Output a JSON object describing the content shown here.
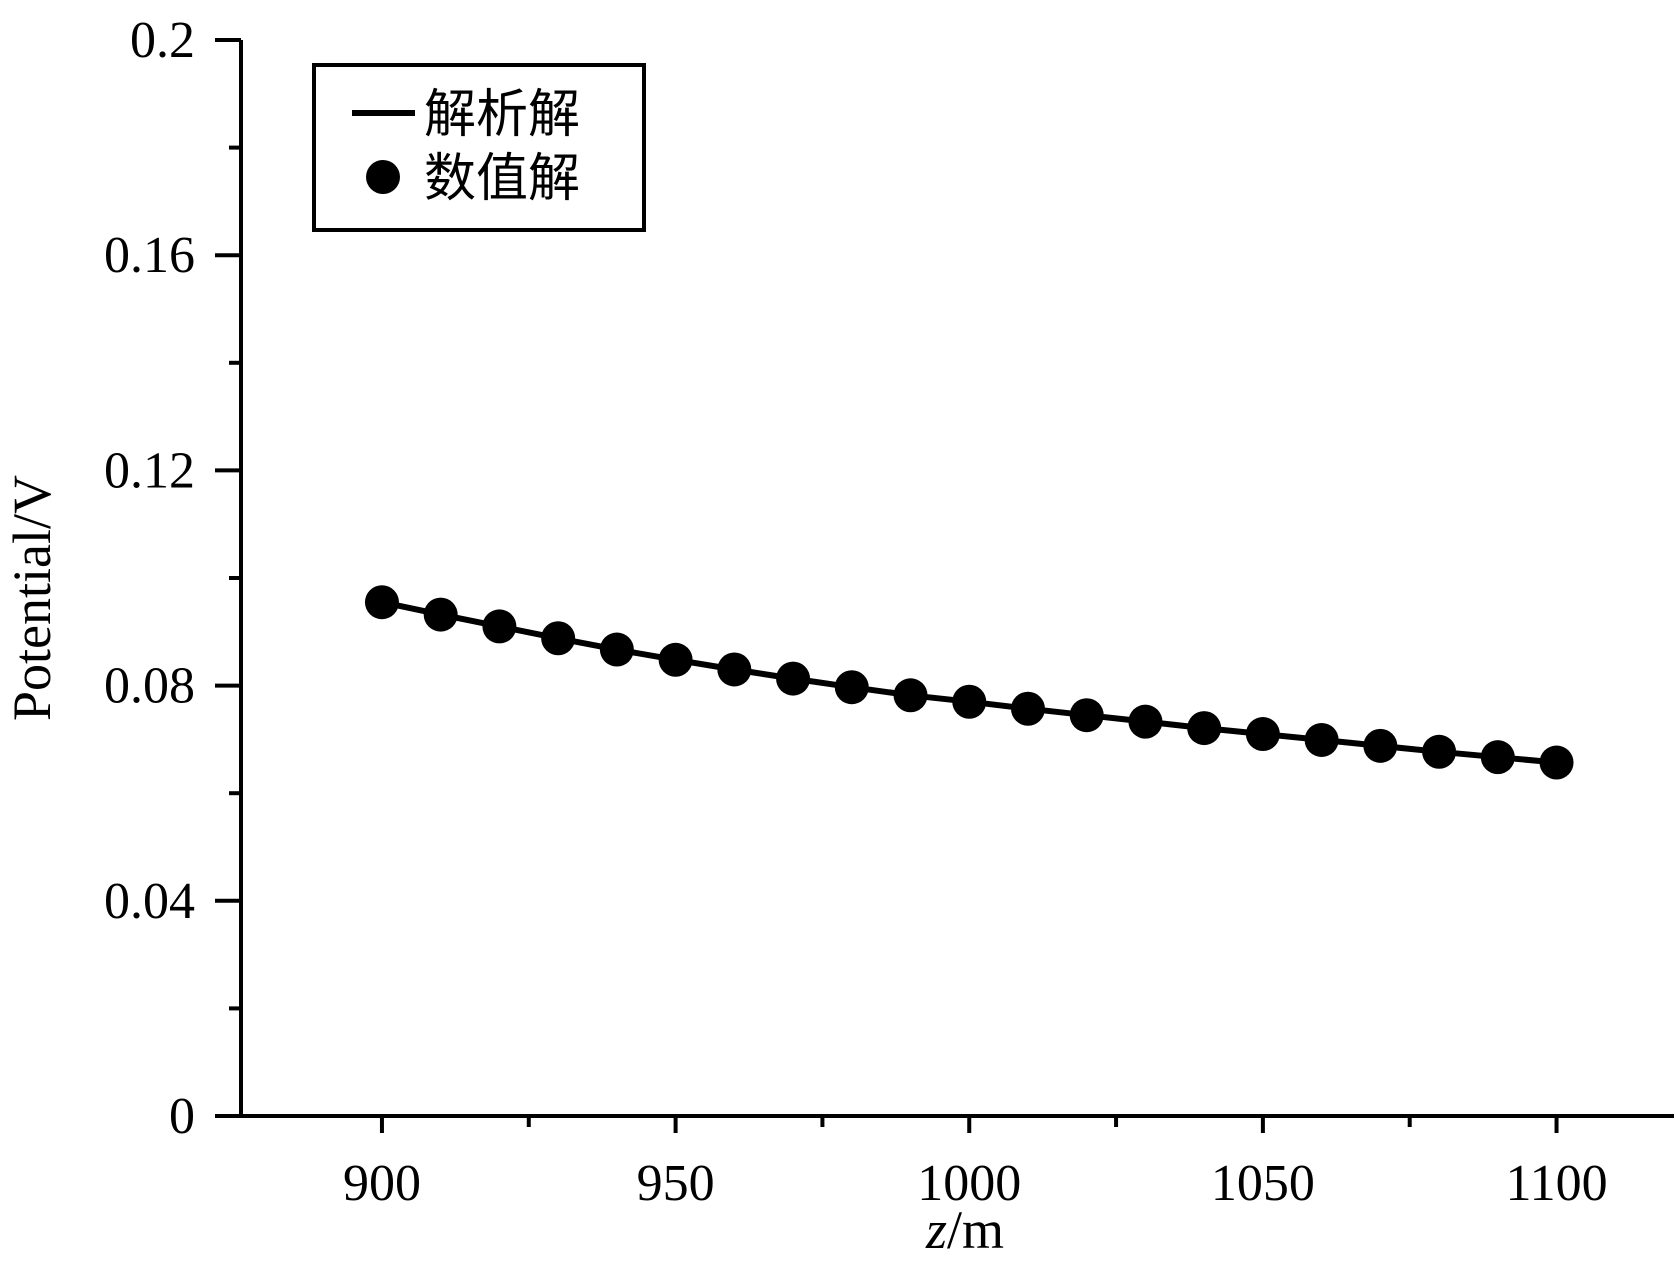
{
  "chart_data": {
    "type": "line",
    "title": "",
    "xlabel_italic": "z",
    "xlabel_unit": "/m",
    "ylabel": "Potential/V",
    "xlim": [
      876,
      1120
    ],
    "ylim": [
      0,
      0.2
    ],
    "xticks": [
      900,
      950,
      1000,
      1050,
      1100
    ],
    "xtick_labels": [
      "900",
      "950",
      "1000",
      "1050",
      "1100"
    ],
    "x_minor_ticks": [
      925,
      975,
      1025,
      1075
    ],
    "yticks": [
      0,
      0.04,
      0.08,
      0.12,
      0.16,
      0.2
    ],
    "ytick_labels": [
      "0",
      "0.04",
      "0.08",
      "0.12",
      "0.16",
      "0.2"
    ],
    "y_minor_ticks": [
      0.02,
      0.06,
      0.1,
      0.14,
      0.18
    ],
    "grid": false,
    "legend": {
      "position": "top-left"
    },
    "colors": {
      "line": "#000000",
      "marker": "#000000"
    },
    "x": [
      900,
      910,
      920,
      930,
      940,
      950,
      960,
      970,
      980,
      990,
      1000,
      1010,
      1020,
      1030,
      1040,
      1050,
      1060,
      1070,
      1080,
      1090,
      1100
    ],
    "series": [
      {
        "name": "解析解",
        "style": "line",
        "values": [
          0.0955,
          0.0932,
          0.091,
          0.0888,
          0.0867,
          0.0848,
          0.083,
          0.0813,
          0.0797,
          0.0782,
          0.077,
          0.0757,
          0.0745,
          0.0733,
          0.0721,
          0.071,
          0.0699,
          0.0688,
          0.0677,
          0.0667,
          0.0657
        ]
      },
      {
        "name": "数值解",
        "style": "marker",
        "values": [
          0.0955,
          0.0932,
          0.091,
          0.0888,
          0.0867,
          0.0848,
          0.083,
          0.0813,
          0.0797,
          0.0782,
          0.077,
          0.0757,
          0.0745,
          0.0733,
          0.0721,
          0.071,
          0.0699,
          0.0688,
          0.0677,
          0.0667,
          0.0657
        ]
      }
    ]
  }
}
